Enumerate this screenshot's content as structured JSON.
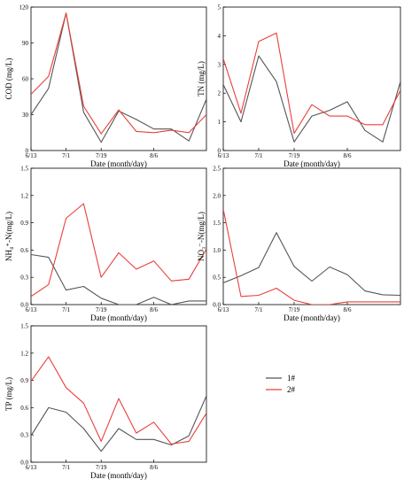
{
  "colors": {
    "series_1": "#555555",
    "series_2": "#e8403a",
    "frame": "#000000"
  },
  "legend": {
    "entries": [
      {
        "label": "1#",
        "color": "#555555"
      },
      {
        "label": "2#",
        "color": "#e8403a"
      }
    ]
  },
  "chart_data": [
    {
      "id": "cod",
      "type": "line",
      "xlabel": "Date (month/day)",
      "ylabel": "COD (mg/L)",
      "xlim": [
        0,
        10
      ],
      "ylim": [
        0,
        120
      ],
      "xticks": [
        {
          "x": 0,
          "label": "6/13"
        },
        {
          "x": 2,
          "label": "7/1"
        },
        {
          "x": 4,
          "label": "7/19"
        },
        {
          "x": 7,
          "label": "8/6"
        }
      ],
      "yticks": [
        0,
        30,
        60,
        90,
        120
      ],
      "ytick_labels": [
        "0",
        "30",
        "60",
        "90",
        "120"
      ],
      "series": [
        {
          "label": "1#",
          "color": "#555555",
          "x": [
            0,
            1,
            2,
            3,
            4,
            5,
            6,
            7,
            8,
            9,
            10
          ],
          "y": [
            30,
            52,
            115,
            32,
            7,
            33,
            26,
            18,
            18,
            8,
            43
          ]
        },
        {
          "label": "2#",
          "color": "#e8403a",
          "x": [
            0,
            1,
            2,
            3,
            4,
            5,
            6,
            7,
            8,
            9,
            10
          ],
          "y": [
            47,
            62,
            115,
            37,
            14,
            34,
            16,
            15,
            17,
            15,
            30
          ]
        }
      ]
    },
    {
      "id": "tn",
      "type": "line",
      "xlabel": "Date (month/day)",
      "ylabel": "TN (mg/L)",
      "xlim": [
        0,
        10
      ],
      "ylim": [
        0,
        5
      ],
      "xticks": [
        {
          "x": 0,
          "label": "6/13"
        },
        {
          "x": 2,
          "label": "7/1"
        },
        {
          "x": 4,
          "label": "7/19"
        },
        {
          "x": 7,
          "label": "8/6"
        }
      ],
      "yticks": [
        0,
        1,
        2,
        3,
        4,
        5
      ],
      "ytick_labels": [
        "0",
        "1",
        "2",
        "3",
        "4",
        "5"
      ],
      "series": [
        {
          "label": "1#",
          "color": "#555555",
          "x": [
            0,
            1,
            2,
            3,
            4,
            5,
            6,
            7,
            8,
            9,
            10
          ],
          "y": [
            2.3,
            1.0,
            3.3,
            2.4,
            0.3,
            1.2,
            1.4,
            1.7,
            0.7,
            0.3,
            2.4
          ]
        },
        {
          "label": "2#",
          "color": "#e8403a",
          "x": [
            0,
            1,
            2,
            3,
            4,
            5,
            6,
            7,
            8,
            9,
            10
          ],
          "y": [
            3.2,
            1.3,
            3.8,
            4.1,
            0.6,
            1.6,
            1.2,
            1.2,
            0.9,
            0.9,
            2.1
          ]
        }
      ]
    },
    {
      "id": "nh",
      "type": "line",
      "xlabel": "Date (month/day)",
      "ylabel": "NH₄⁺-N(mg/L)",
      "xlim": [
        0,
        10
      ],
      "ylim": [
        0,
        1.5
      ],
      "xticks": [
        {
          "x": 0,
          "label": "6/13"
        },
        {
          "x": 2,
          "label": "7/1"
        },
        {
          "x": 4,
          "label": "7/19"
        },
        {
          "x": 7,
          "label": "8/6"
        }
      ],
      "yticks": [
        0,
        0.3,
        0.6,
        0.9,
        1.2,
        1.5
      ],
      "ytick_labels": [
        "0.0",
        "0.3",
        "0.6",
        "0.9",
        "1.2",
        "1.5"
      ],
      "series": [
        {
          "label": "1#",
          "color": "#555555",
          "x": [
            0,
            1,
            2,
            3,
            4,
            5,
            6,
            7,
            8,
            9,
            10
          ],
          "y": [
            0.55,
            0.52,
            0.16,
            0.2,
            0.07,
            0,
            0,
            0.08,
            0,
            0.04,
            0.04
          ]
        },
        {
          "label": "2#",
          "color": "#e8403a",
          "x": [
            0,
            1,
            2,
            3,
            4,
            5,
            6,
            7,
            8,
            9,
            10
          ],
          "y": [
            0.09,
            0.22,
            0.95,
            1.11,
            0.3,
            0.57,
            0.39,
            0.48,
            0.26,
            0.28,
            0.61
          ]
        }
      ]
    },
    {
      "id": "no3",
      "type": "line",
      "xlabel": "Date (month/day)",
      "ylabel": "NO₃⁻-N(mg/L)",
      "xlim": [
        0,
        10
      ],
      "ylim": [
        0,
        2.5
      ],
      "xticks": [
        {
          "x": 0,
          "label": "6/13"
        },
        {
          "x": 2,
          "label": "7/1"
        },
        {
          "x": 4,
          "label": "7/19"
        },
        {
          "x": 7,
          "label": "8/6"
        }
      ],
      "yticks": [
        0,
        0.5,
        1.0,
        1.5,
        2.0,
        2.5
      ],
      "ytick_labels": [
        "0.0",
        "0.5",
        "1.0",
        "1.5",
        "2.0",
        "2.5"
      ],
      "series": [
        {
          "label": "1#",
          "color": "#555555",
          "x": [
            0,
            1,
            2,
            3,
            4,
            5,
            6,
            7,
            8,
            9,
            10
          ],
          "y": [
            0.4,
            0.53,
            0.68,
            1.32,
            0.7,
            0.43,
            0.69,
            0.55,
            0.25,
            0.18,
            0.17
          ]
        },
        {
          "label": "2#",
          "color": "#e8403a",
          "x": [
            0,
            1,
            2,
            3,
            4,
            5,
            6,
            7,
            8,
            9,
            10
          ],
          "y": [
            1.75,
            0.15,
            0.17,
            0.3,
            0.08,
            0,
            0,
            0.05,
            0.05,
            0.05,
            0.05
          ]
        }
      ]
    },
    {
      "id": "tp",
      "type": "line",
      "xlabel": "Date (month/day)",
      "ylabel": "TP (mg/L)",
      "xlim": [
        0,
        10
      ],
      "ylim": [
        0,
        1.5
      ],
      "xticks": [
        {
          "x": 0,
          "label": "6/13"
        },
        {
          "x": 2,
          "label": "7/1"
        },
        {
          "x": 4,
          "label": "7/19"
        },
        {
          "x": 7,
          "label": "8/6"
        }
      ],
      "yticks": [
        0,
        0.3,
        0.6,
        0.9,
        1.2,
        1.5
      ],
      "ytick_labels": [
        "0.0",
        "0.3",
        "0.6",
        "0.9",
        "1.2",
        "1.5"
      ],
      "series": [
        {
          "label": "1#",
          "color": "#555555",
          "x": [
            0,
            1,
            2,
            3,
            4,
            5,
            6,
            7,
            8,
            9,
            10
          ],
          "y": [
            0.29,
            0.6,
            0.55,
            0.37,
            0.12,
            0.37,
            0.25,
            0.25,
            0.19,
            0.29,
            0.73
          ]
        },
        {
          "label": "2#",
          "color": "#e8403a",
          "x": [
            0,
            1,
            2,
            3,
            4,
            5,
            6,
            7,
            8,
            9,
            10
          ],
          "y": [
            0.89,
            1.16,
            0.82,
            0.65,
            0.23,
            0.7,
            0.32,
            0.44,
            0.2,
            0.23,
            0.54
          ]
        }
      ]
    }
  ]
}
